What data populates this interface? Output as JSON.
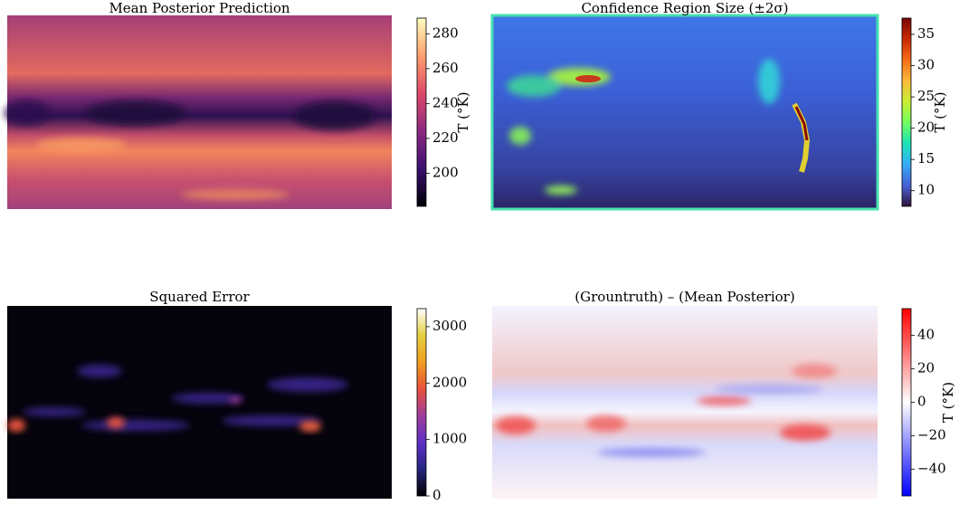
{
  "chart_data": [
    {
      "type": "heatmap",
      "title": "Mean Posterior Prediction",
      "colorbar_label": "T (°K)",
      "clim": [
        181,
        289
      ],
      "cticks": [
        200,
        220,
        240,
        260,
        280
      ],
      "colors": [
        "#000004",
        "#3b0f70",
        "#8c2981",
        "#de4968",
        "#fe9f6d",
        "#fcfdbf"
      ]
    },
    {
      "type": "heatmap",
      "title": "Confidence Region Size (±2σ)",
      "colorbar_label": "T (°K)",
      "clim": [
        7.5,
        37.6
      ],
      "cticks": [
        10,
        15,
        20,
        25,
        30,
        35
      ],
      "colors": [
        "#30123b",
        "#4662d7",
        "#36aaf9",
        "#1ae4b6",
        "#72fe5e",
        "#c8ef34",
        "#faba39",
        "#f66b19",
        "#ca2a04",
        "#7a0403"
      ]
    },
    {
      "type": "heatmap",
      "title": "Squared Error",
      "clim": [
        0,
        3320
      ],
      "cticks": [
        0,
        1000,
        2000,
        3000
      ],
      "colors": [
        "#000000",
        "#262680",
        "#5e30c8",
        "#a03c9c",
        "#e8523c",
        "#f0a020",
        "#e6d040",
        "#ffffff"
      ]
    },
    {
      "type": "heatmap",
      "title": "(Grountruth) – (Mean Posterior)",
      "colorbar_label": "T (°K)",
      "clim": [
        -56,
        56
      ],
      "cticks": [
        {
          "value": -40,
          "label": "−40"
        },
        {
          "value": -20,
          "label": "−20"
        },
        0,
        20,
        40
      ],
      "colors": [
        "#0000ff",
        "#ffffff",
        "#ff0000"
      ]
    }
  ]
}
